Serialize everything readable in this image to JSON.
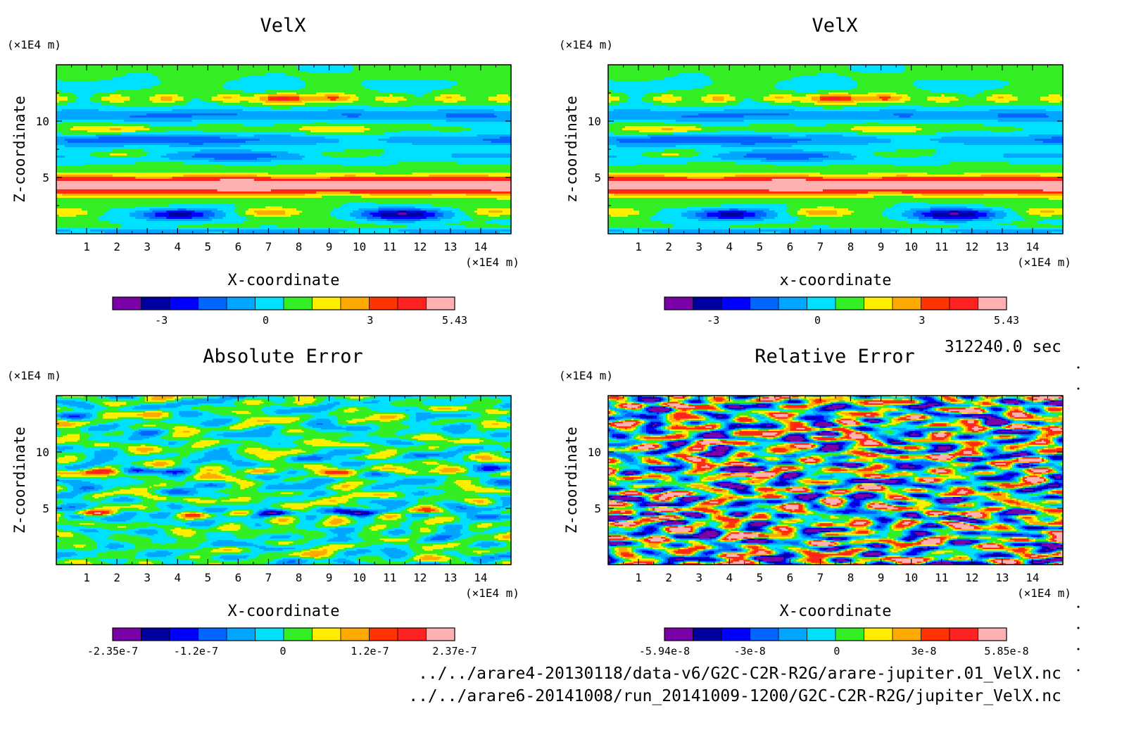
{
  "colormap": [
    "#7a00a8",
    "#0000a0",
    "#0000ff",
    "#0066ff",
    "#00a6ff",
    "#00e0ff",
    "#33ee22",
    "#ffee00",
    "#ffaa00",
    "#ff7700",
    "#ff3300",
    "#ff2222",
    "#ff8888",
    "#ffb0b0"
  ],
  "time_label": "312240.0 sec",
  "files": [
    "../../arare4-20130118/data-v6/G2C-C2R-R2G/arare-jupiter.01_VelX.nc",
    "../../arare6-20141008/run_20141009-1200/G2C-C2R-R2G/jupiter_VelX.nc"
  ],
  "chart_data": [
    {
      "type": "heatmap",
      "title": "VelX",
      "xlabel": "X-coordinate",
      "ylabel": "Z-coordinate",
      "x_unit": "(×1E4 m)",
      "y_unit": "(×1E4 m)",
      "xlim": [
        0,
        15
      ],
      "ylim": [
        0,
        15
      ],
      "x_ticks": [
        1,
        2,
        3,
        4,
        5,
        6,
        7,
        8,
        9,
        10,
        11,
        12,
        13,
        14
      ],
      "y_ticks": [
        5,
        10
      ],
      "field": "velx",
      "colorbar": {
        "ticks": [
          "-3",
          "0",
          "3",
          "5.43"
        ],
        "tick_values": [
          -3,
          0,
          3,
          5.43
        ],
        "min": -4.4,
        "max": 5.43,
        "levels": 13
      }
    },
    {
      "type": "heatmap",
      "title": "VelX",
      "xlabel": "x-coordinate",
      "ylabel": "z-coordinate",
      "x_unit": "(×1E4 m)",
      "y_unit": "(×1E4 m)",
      "xlim": [
        0,
        15
      ],
      "ylim": [
        0,
        15
      ],
      "x_ticks": [
        1,
        2,
        3,
        4,
        5,
        6,
        7,
        8,
        9,
        10,
        11,
        12,
        13,
        14
      ],
      "y_ticks": [
        5,
        10
      ],
      "field": "velx",
      "colorbar": {
        "ticks": [
          "-3",
          "0",
          "3",
          "5.43"
        ],
        "tick_values": [
          -3,
          0,
          3,
          5.43
        ],
        "min": -4.4,
        "max": 5.43,
        "levels": 13
      }
    },
    {
      "type": "heatmap",
      "title": "Absolute Error",
      "xlabel": "X-coordinate",
      "ylabel": "Z-coordinate",
      "x_unit": "(×1E4 m)",
      "y_unit": "(×1E4 m)",
      "xlim": [
        0,
        15
      ],
      "ylim": [
        0,
        15
      ],
      "x_ticks": [
        1,
        2,
        3,
        4,
        5,
        6,
        7,
        8,
        9,
        10,
        11,
        12,
        13,
        14
      ],
      "y_ticks": [
        5,
        10
      ],
      "field": "abs_error",
      "colorbar": {
        "ticks": [
          "-2.35e-7",
          "-1.2e-7",
          "0",
          "1.2e-7",
          "2.37e-7"
        ],
        "tick_values": [
          -2.35e-07,
          -1.2e-07,
          0,
          1.2e-07,
          2.37e-07
        ],
        "min": -2.35e-07,
        "max": 2.37e-07,
        "levels": 12
      }
    },
    {
      "type": "heatmap",
      "title": "Relative Error",
      "xlabel": "X-coordinate",
      "ylabel": "Z-coordinate",
      "x_unit": "(×1E4 m)",
      "y_unit": "(×1E4 m)",
      "xlim": [
        0,
        15
      ],
      "ylim": [
        0,
        15
      ],
      "x_ticks": [
        1,
        2,
        3,
        4,
        5,
        6,
        7,
        8,
        9,
        10,
        11,
        12,
        13,
        14
      ],
      "y_ticks": [
        5,
        10
      ],
      "field": "rel_error",
      "colorbar": {
        "ticks": [
          "-5.94e-8",
          "-3e-8",
          "0",
          "3e-8",
          "5.85e-8"
        ],
        "tick_values": [
          -5.94e-08,
          -3e-08,
          0,
          3e-08,
          5.85e-08
        ],
        "min": -5.94e-08,
        "max": 5.85e-08,
        "levels": 12
      }
    }
  ]
}
